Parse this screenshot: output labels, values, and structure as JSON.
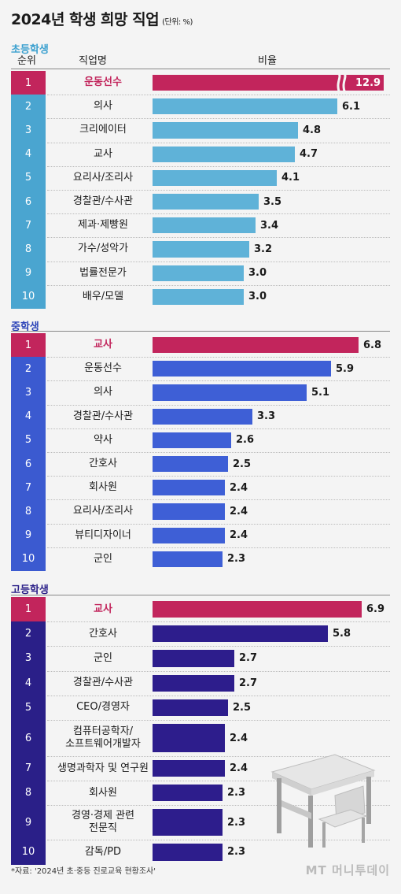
{
  "title": "2024년 학생 희망 직업",
  "unit": "(단위: %)",
  "headers": {
    "rank": "순위",
    "job": "직업명",
    "ratio": "비율"
  },
  "colors": {
    "highlight": "#c2255c",
    "elementary": "#5fb2d8",
    "elementary_rank": "#4aa5d0",
    "middle": "#3e5fd6",
    "middle_rank": "#3b5ad0",
    "high": "#2d1d8c",
    "high_rank": "#2a1f88"
  },
  "source": "*자료: '2024년 초·중등 진로교육 현황조사'",
  "logo": "MT 머니투데이",
  "chart_data": [
    {
      "type": "bar",
      "title": "초등학생",
      "categories": [
        "운동선수",
        "의사",
        "크리에이터",
        "교사",
        "요리사/조리사",
        "경찰관/수사관",
        "제과·제빵원",
        "가수/성악가",
        "법률전문가",
        "배우/모델"
      ],
      "values": [
        12.9,
        6.1,
        4.8,
        4.7,
        4.1,
        3.5,
        3.4,
        3.2,
        3.0,
        3.0
      ],
      "labels": [
        "12.9",
        "6.1",
        "4.8",
        "4.7",
        "4.1",
        "3.5",
        "3.4",
        "3.2",
        "3.0",
        "3.0"
      ],
      "broken_axis_first": true
    },
    {
      "type": "bar",
      "title": "중학생",
      "categories": [
        "교사",
        "운동선수",
        "의사",
        "경찰관/수사관",
        "약사",
        "간호사",
        "회사원",
        "요리사/조리사",
        "뷰티디자이너",
        "군인"
      ],
      "values": [
        6.8,
        5.9,
        5.1,
        3.3,
        2.6,
        2.5,
        2.4,
        2.4,
        2.4,
        2.3
      ],
      "labels": [
        "6.8",
        "5.9",
        "5.1",
        "3.3",
        "2.6",
        "2.5",
        "2.4",
        "2.4",
        "2.4",
        "2.3"
      ]
    },
    {
      "type": "bar",
      "title": "고등학생",
      "categories": [
        "교사",
        "간호사",
        "군인",
        "경찰관/수사관",
        "CEO/경영자",
        "컴퓨터공학자/\n소프트웨어개발자",
        "생명과학자 및 연구원",
        "회사원",
        "경영·경제 관련\n전문직",
        "감독/PD"
      ],
      "values": [
        6.9,
        5.8,
        2.7,
        2.7,
        2.5,
        2.4,
        2.4,
        2.3,
        2.3,
        2.3
      ],
      "labels": [
        "6.9",
        "5.8",
        "2.7",
        "2.7",
        "2.5",
        "2.4",
        "2.4",
        "2.3",
        "2.3",
        "2.3"
      ]
    }
  ]
}
